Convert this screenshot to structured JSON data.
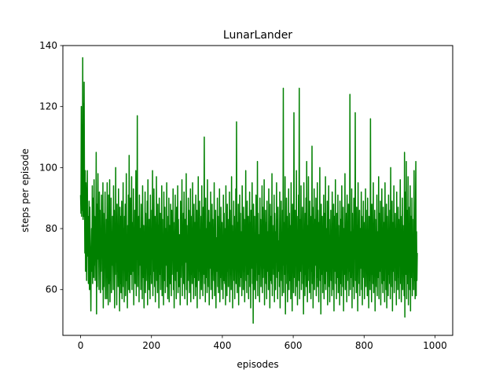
{
  "colors": {
    "series": "#008000",
    "axis": "#000000",
    "background": "#ffffff"
  },
  "chart_data": {
    "type": "line",
    "title": "LunarLander",
    "xlabel": "episodes",
    "ylabel": "steps per episode",
    "xlim": [
      -50,
      1050
    ],
    "ylim": [
      45,
      140
    ],
    "x_ticks": [
      0,
      200,
      400,
      600,
      800,
      1000
    ],
    "y_ticks": [
      60,
      80,
      100,
      120,
      140
    ],
    "x_tick_labels": [
      "0",
      "200",
      "400",
      "600",
      "800",
      "1000"
    ],
    "y_tick_labels": [
      "60",
      "80",
      "100",
      "120",
      "140"
    ],
    "grid": false,
    "series": [
      {
        "name": "steps per episode",
        "color": "#008000",
        "x_start": 0,
        "x_step": 1,
        "values": [
          91,
          85,
          120,
          84,
          114,
          86,
          136,
          83,
          121,
          84,
          128,
          90,
          72,
          99,
          66,
          95,
          82,
          63,
          88,
          99,
          71,
          84,
          62,
          74,
          89,
          60,
          87,
          74,
          65,
          53,
          71,
          80,
          66,
          94,
          62,
          90,
          75,
          64,
          96,
          68,
          84,
          63,
          81,
          72,
          105,
          52,
          88,
          61,
          80,
          98,
          70,
          75,
          60,
          92,
          70,
          86,
          59,
          79,
          66,
          91,
          73,
          82,
          60,
          95,
          54,
          85,
          61,
          78,
          71,
          92,
          57,
          76,
          64,
          83,
          57,
          95,
          66,
          73,
          55,
          91,
          82,
          62,
          96,
          56,
          74,
          63,
          90,
          59,
          73,
          68,
          84,
          77,
          60,
          94,
          71,
          86,
          54,
          78,
          65,
          100,
          69,
          81,
          55,
          88,
          66,
          79,
          61,
          93,
          69,
          72,
          53,
          87,
          62,
          84,
          59,
          74,
          89,
          57,
          76,
          67,
          95,
          61,
          80,
          56,
          84,
          73,
          88,
          58,
          70,
          98,
          63,
          77,
          54,
          81,
          66,
          91,
          60,
          104,
          72,
          59,
          78,
          90,
          65,
          74,
          97,
          60,
          82,
          71,
          66,
          93,
          55,
          79,
          68,
          86,
          62,
          74,
          99,
          58,
          83,
          70,
          117,
          61,
          77,
          65,
          84,
          56,
          91,
          73,
          68,
          80,
          60,
          88,
          66,
          75,
          57,
          94,
          72,
          64,
          81,
          54,
          79,
          69,
          92,
          59,
          85,
          63,
          76,
          71,
          89,
          55,
          96,
          67,
          72,
          60,
          83,
          74,
          57,
          91,
          65,
          78,
          62,
          86,
          70,
          99,
          58,
          80,
          66,
          93,
          73,
          61,
          84,
          56,
          77,
          69,
          97,
          63,
          74,
          59,
          88,
          67,
          81,
          54,
          90,
          71,
          65,
          85,
          60,
          78,
          72,
          94,
          58,
          83,
          66,
          76,
          55,
          92,
          70,
          63,
          87,
          59,
          80,
          74,
          68,
          95,
          61,
          84,
          57,
          73,
          66,
          90,
          56,
          81,
          69,
          62,
          88,
          74,
          58,
          86,
          65,
          77,
          71,
          93,
          60,
          82,
          54,
          79,
          67,
          91,
          63,
          75,
          57,
          87,
          72,
          66,
          94,
          59,
          83,
          70,
          61,
          78,
          73,
          55,
          89,
          64,
          80,
          68,
          96,
          58,
          76,
          71,
          85,
          62,
          92,
          66,
          57,
          83,
          74,
          69,
          98,
          60,
          81,
          55,
          77,
          67,
          90,
          63,
          86,
          59,
          74,
          71,
          93,
          56,
          84,
          65,
          79,
          62,
          95,
          68,
          73,
          57,
          88,
          70,
          64,
          82,
          58,
          91,
          75,
          61,
          86,
          54,
          78,
          69,
          97,
          63,
          81,
          66,
          89,
          57,
          76,
          72,
          84,
          60,
          94,
          67,
          73,
          58,
          87,
          65,
          79,
          110,
          62,
          84,
          56,
          90,
          71,
          64,
          80,
          59,
          96,
          68,
          75,
          61,
          86,
          55,
          82,
          73,
          67,
          92,
          60,
          78,
          65,
          88,
          57,
          83,
          70,
          74,
          63,
          95,
          58,
          81,
          69,
          86,
          54,
          77,
          72,
          66,
          90,
          61,
          84,
          59,
          79,
          68,
          93,
          56,
          73,
          64,
          87,
          71,
          60,
          82,
          67,
          76,
          57,
          91,
          63,
          85,
          70,
          62,
          80,
          55,
          94,
          69,
          74,
          58,
          88,
          66,
          83,
          61,
          78,
          72,
          92,
          56,
          86,
          65,
          75,
          60,
          97,
          68,
          81,
          54,
          79,
          71,
          89,
          63,
          84,
          57,
          76,
          67,
          93,
          62,
          115,
          70,
          59,
          82,
          66,
          88,
          55,
          77,
          73,
          91,
          61,
          85,
          69,
          64,
          79,
          58,
          94,
          72,
          76,
          60,
          87,
          66,
          83,
          56,
          80,
          68,
          99,
          63,
          74,
          59,
          89,
          71,
          65,
          84,
          57,
          78,
          73,
          92,
          61,
          82,
          54,
          86,
          70,
          67,
          95,
          62,
          79,
          49,
          88,
          75,
          60,
          84,
          66,
          73,
          57,
          91,
          69,
          81,
          63,
          102,
          58,
          85,
          72,
          65,
          78,
          56,
          90,
          68,
          83,
          61,
          76,
          71,
          94,
          59,
          87,
          64,
          80,
          67,
          96,
          55,
          74,
          70,
          86,
          62,
          82,
          57,
          89,
          73,
          66,
          79,
          60,
          93,
          68,
          75,
          54,
          88,
          63,
          84,
          71,
          62,
          98,
          58,
          81,
          67,
          77,
          65,
          91,
          56,
          85,
          74,
          60,
          79,
          69,
          95,
          64,
          83,
          57,
          87,
          72,
          66,
          76,
          61,
          92,
          54,
          80,
          70,
          89,
          63,
          74,
          58,
          86,
          68,
          126,
          59,
          82,
          73,
          65,
          97,
          52,
          78,
          62,
          90,
          71,
          84,
          56,
          77,
          67,
          93,
          60,
          85,
          74,
          63,
          81,
          57,
          95,
          69,
          75,
          53,
          88,
          66,
          82,
          59,
          118,
          72,
          64,
          86,
          58,
          79,
          70,
          99,
          61,
          84,
          55,
          76,
          68,
          91,
          63,
          126,
          57,
          83,
          71,
          66,
          94,
          60,
          80,
          73,
          87,
          62,
          74,
          52,
          95,
          69,
          78,
          58,
          85,
          65,
          90,
          61,
          102,
          70,
          56,
          81,
          67,
          97,
          63,
          76,
          59,
          89,
          72,
          84,
          57,
          79,
          66,
          107,
          62,
          87,
          54,
          74,
          69,
          93,
          60,
          83,
          73,
          68,
          90,
          58,
          78,
          64,
          95,
          61,
          86,
          71,
          56,
          82,
          67,
          100,
          63,
          75,
          52,
          88,
          70,
          65,
          84,
          59,
          79,
          72,
          91,
          57,
          85,
          68,
          62,
          97,
          60,
          80,
          74,
          66,
          89,
          55,
          77,
          70,
          94,
          61,
          83,
          56,
          75,
          69,
          86,
          63,
          72,
          58,
          92,
          67,
          79,
          60,
          88,
          53,
          84,
          71,
          66,
          96,
          62,
          78,
          57,
          85,
          73,
          64,
          91,
          59,
          81,
          68,
          76,
          55,
          89,
          70,
          62,
          83,
          58,
          94,
          67,
          74,
          61,
          87,
          53,
          80,
          72,
          65,
          98,
          60,
          77,
          69,
          85,
          56,
          91,
          63,
          75,
          71,
          88,
          58,
          82,
          66,
          124,
          60,
          79,
          72,
          64,
          93,
          54,
          85,
          68,
          76,
          61,
          90,
          57,
          83,
          70,
          118,
          63,
          74,
          59,
          87,
          65,
          81,
          53,
          95,
          69,
          77,
          62,
          86,
          58,
          80,
          73,
          67,
          92,
          60,
          84,
          55,
          78,
          71,
          89,
          64,
          82,
          57,
          75,
          69,
          93,
          61,
          86,
          66,
          73,
          58,
          90,
          70,
          79,
          54,
          84,
          63,
          77,
          60,
          116,
          68,
          72,
          56,
          88,
          65,
          81,
          62,
          95,
          59,
          76,
          71,
          86,
          53,
          83,
          67,
          74,
          61,
          91,
          58,
          79,
          70,
          64,
          97,
          57,
          85,
          72,
          66,
          89,
          55,
          80,
          68,
          93,
          62,
          76,
          59,
          87,
          71,
          63,
          82,
          56,
          95,
          67,
          78,
          60,
          88,
          54,
          84,
          70,
          73,
          58,
          91,
          65,
          79,
          62,
          86,
          57,
          100,
          68,
          75,
          61,
          89,
          53,
          82,
          72,
          66,
          94,
          59,
          77,
          70,
          85,
          63,
          80,
          55,
          92,
          68,
          74,
          60,
          87,
          64,
          83,
          57,
          78,
          71,
          96,
          62,
          84,
          56,
          76,
          69,
          90,
          60,
          81,
          66,
          73,
          58,
          105,
          51,
          92,
          70,
          65,
          102,
          57,
          86,
          74,
          62,
          97,
          55,
          80,
          68,
          87,
          60,
          94,
          53,
          84,
          72,
          64,
          90,
          58,
          78,
          66,
          83,
          60,
          99,
          63,
          74,
          57,
          88,
          102,
          58,
          79,
          63,
          72
        ]
      }
    ]
  }
}
